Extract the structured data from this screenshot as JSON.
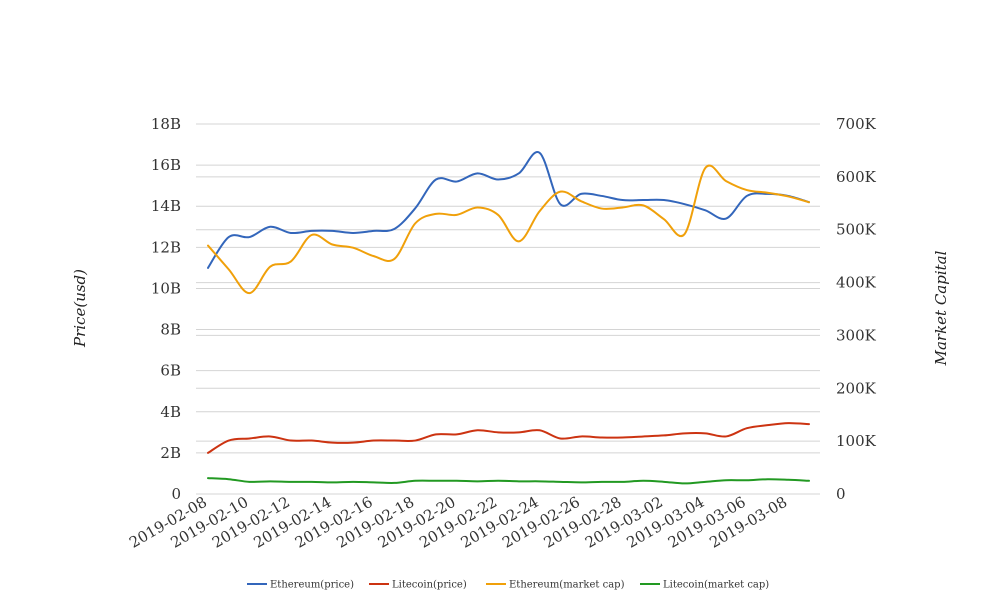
{
  "chart_data": {
    "type": "line",
    "title": "",
    "x": [
      "2019-02-08",
      "2019-02-09",
      "2019-02-10",
      "2019-02-11",
      "2019-02-12",
      "2019-02-13",
      "2019-02-14",
      "2019-02-15",
      "2019-02-16",
      "2019-02-17",
      "2019-02-18",
      "2019-02-19",
      "2019-02-20",
      "2019-02-21",
      "2019-02-22",
      "2019-02-23",
      "2019-02-24",
      "2019-02-25",
      "2019-02-26",
      "2019-02-27",
      "2019-02-28",
      "2019-03-01",
      "2019-03-02",
      "2019-03-03",
      "2019-03-04",
      "2019-03-05",
      "2019-03-06",
      "2019-03-07",
      "2019-03-08",
      "2019-03-09"
    ],
    "x_tick_labels": [
      "2019-02-08",
      "2019-02-10",
      "2019-02-12",
      "2019-02-14",
      "2019-02-16",
      "2019-02-18",
      "2019-02-20",
      "2019-02-22",
      "2019-02-24",
      "2019-02-26",
      "2019-02-28",
      "2019-03-02",
      "2019-03-04",
      "2019-03-06",
      "2019-03-08"
    ],
    "y_left": {
      "label": "Price(usd)",
      "range": [
        0,
        18000000000
      ],
      "ticks": [
        {
          "value": 0,
          "label": "0"
        },
        {
          "value": 2000000000,
          "label": "2B"
        },
        {
          "value": 4000000000,
          "label": "4B"
        },
        {
          "value": 6000000000,
          "label": "6B"
        },
        {
          "value": 8000000000,
          "label": "8B"
        },
        {
          "value": 10000000000,
          "label": "10B"
        },
        {
          "value": 12000000000,
          "label": "12B"
        },
        {
          "value": 14000000000,
          "label": "14B"
        },
        {
          "value": 16000000000,
          "label": "16B"
        },
        {
          "value": 18000000000,
          "label": "18B"
        }
      ]
    },
    "y_right": {
      "label": "Market Capital",
      "range": [
        0,
        700000
      ],
      "ticks": [
        {
          "value": 0,
          "label": "0"
        },
        {
          "value": 100000,
          "label": "100K"
        },
        {
          "value": 200000,
          "label": "200K"
        },
        {
          "value": 300000,
          "label": "300K"
        },
        {
          "value": 400000,
          "label": "400K"
        },
        {
          "value": 500000,
          "label": "500K"
        },
        {
          "value": 600000,
          "label": "600K"
        },
        {
          "value": 700000,
          "label": "700K"
        }
      ]
    },
    "grid": true,
    "legend_position": "bottom",
    "series": [
      {
        "name": "Ethereum(price)",
        "axis": "left",
        "color": "#3366bb",
        "values": [
          11000000000,
          12500000000,
          12500000000,
          13000000000,
          12700000000,
          12800000000,
          12800000000,
          12700000000,
          12800000000,
          12900000000,
          13900000000,
          15300000000,
          15200000000,
          15600000000,
          15300000000,
          15600000000,
          16600000000,
          14100000000,
          14600000000,
          14500000000,
          14300000000,
          14300000000,
          14300000000,
          14100000000,
          13800000000,
          13400000000,
          14500000000,
          14600000000,
          14500000000,
          14200000000
        ]
      },
      {
        "name": "Litecoin(price)",
        "axis": "left",
        "color": "#cc3311",
        "values": [
          2000000000,
          2600000000,
          2700000000,
          2800000000,
          2600000000,
          2600000000,
          2500000000,
          2500000000,
          2600000000,
          2600000000,
          2600000000,
          2900000000,
          2900000000,
          3100000000,
          3000000000,
          3000000000,
          3100000000,
          2700000000,
          2800000000,
          2750000000,
          2750000000,
          2800000000,
          2850000000,
          2950000000,
          2950000000,
          2800000000,
          3200000000,
          3350000000,
          3450000000,
          3400000000
        ]
      },
      {
        "name": "Ethereum(market cap)",
        "axis": "right",
        "color": "#f0a00a",
        "values": [
          470000,
          425000,
          380000,
          430000,
          440000,
          490000,
          472000,
          466000,
          450000,
          445000,
          512000,
          530000,
          528000,
          542000,
          528000,
          478000,
          535000,
          572000,
          554000,
          540000,
          542000,
          546000,
          520000,
          492000,
          617000,
          592000,
          575000,
          570000,
          563000,
          552000
        ]
      },
      {
        "name": "Litecoin(market cap)",
        "axis": "right",
        "color": "#229922",
        "values": [
          30000,
          28000,
          23000,
          24000,
          23000,
          23000,
          22000,
          23000,
          22000,
          21000,
          25000,
          25000,
          25000,
          24000,
          25000,
          24000,
          24000,
          23000,
          22000,
          23000,
          23000,
          25000,
          23000,
          20000,
          23000,
          26000,
          26000,
          28000,
          27000,
          25000
        ]
      }
    ]
  }
}
